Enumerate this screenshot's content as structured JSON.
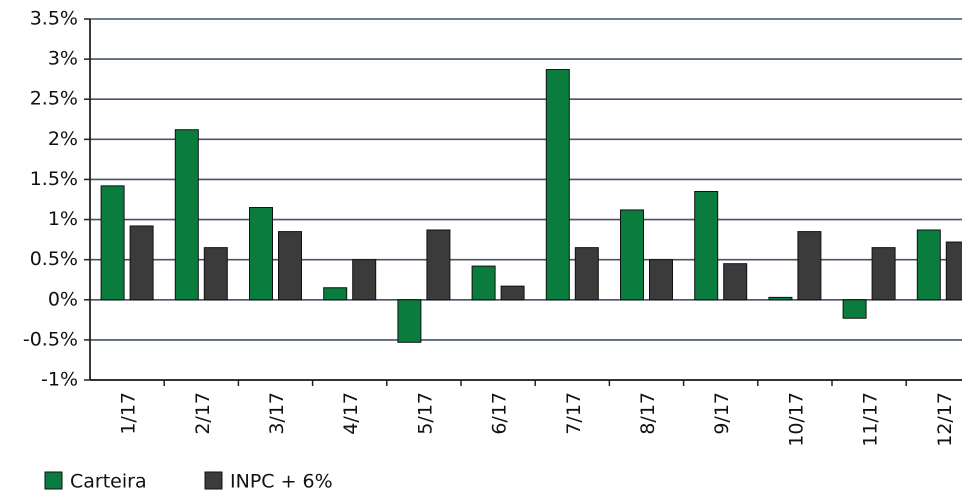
{
  "chart_data": {
    "type": "bar",
    "categories": [
      "1/17",
      "2/17",
      "3/17",
      "4/17",
      "5/17",
      "6/17",
      "7/17",
      "8/17",
      "9/17",
      "10/17",
      "11/17",
      "12/17"
    ],
    "series": [
      {
        "name": "Carteira",
        "color": "#0a7d3e",
        "values": [
          1.42,
          2.12,
          1.15,
          0.15,
          -0.53,
          0.42,
          2.87,
          1.12,
          1.35,
          0.03,
          -0.23,
          0.87
        ]
      },
      {
        "name": "INPC + 6%",
        "color": "#3b3b3b",
        "values": [
          0.92,
          0.65,
          0.85,
          0.5,
          0.87,
          0.17,
          0.65,
          0.5,
          0.45,
          0.85,
          0.65,
          0.72
        ]
      }
    ],
    "ylim": [
      -1,
      3.5
    ],
    "yticks": [
      {
        "value": -1,
        "label": "-1%"
      },
      {
        "value": -0.5,
        "label": "-0.5%"
      },
      {
        "value": 0,
        "label": "0%"
      },
      {
        "value": 0.5,
        "label": "0.5%"
      },
      {
        "value": 1,
        "label": "1%"
      },
      {
        "value": 1.5,
        "label": "1.5%"
      },
      {
        "value": 2,
        "label": "2%"
      },
      {
        "value": 2.5,
        "label": "2.5%"
      },
      {
        "value": 3,
        "label": "3%"
      },
      {
        "value": 3.5,
        "label": "3.5%"
      }
    ],
    "grid": true,
    "legend": "bottom-left"
  }
}
